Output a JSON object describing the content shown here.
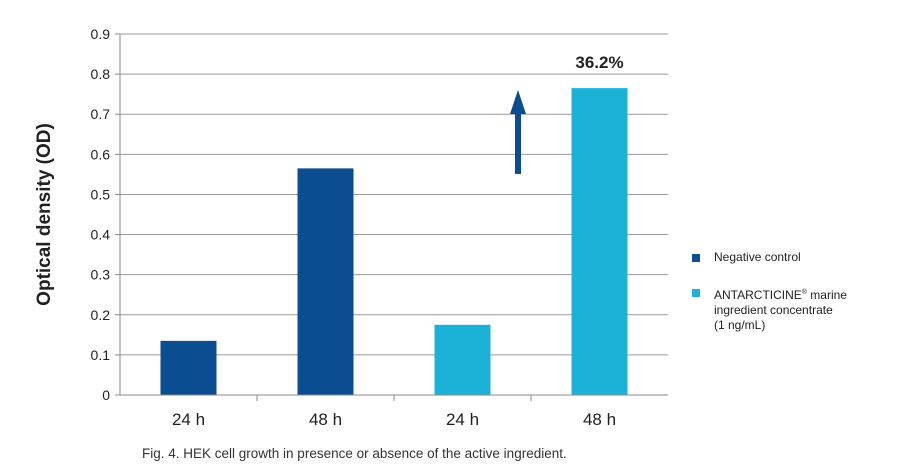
{
  "chart_data": {
    "type": "bar",
    "categories": [
      "24 h",
      "48 h",
      "24 h",
      "48 h"
    ],
    "series": [
      {
        "name": "Negative control",
        "values": [
          0.135,
          0.565,
          null,
          null
        ],
        "color": "#0a4d91"
      },
      {
        "name": "ANTARCTICINE® marine ingredient concentrate (1 ng/mL)",
        "values": [
          null,
          null,
          0.175,
          0.765
        ],
        "color": "#1cb2d7"
      }
    ],
    "ylabel": "Optical density (OD)",
    "ylim": [
      0,
      0.9
    ],
    "yticks": [
      "0",
      "0.1",
      "0.2",
      "0.3",
      "0.4",
      "0.5",
      "0.6",
      "0.7",
      "0.8",
      "0.9"
    ],
    "grid": true,
    "legend_position": "right",
    "annotation": {
      "text": "36.2%",
      "arrow": "up",
      "arrow_color": "#0a4d91"
    }
  },
  "legend": {
    "item1": {
      "label": "Negative control",
      "color": "#0a4d91"
    },
    "item2": {
      "label_prefix": "ANTARCTICINE",
      "label_sup": "®",
      "label_suffix": " marine\ningredient concentrate\n(1 ng/mL)",
      "color": "#1cb2d7"
    }
  },
  "caption": "Fig. 4. HEK cell growth in presence or absence of the active ingredient."
}
